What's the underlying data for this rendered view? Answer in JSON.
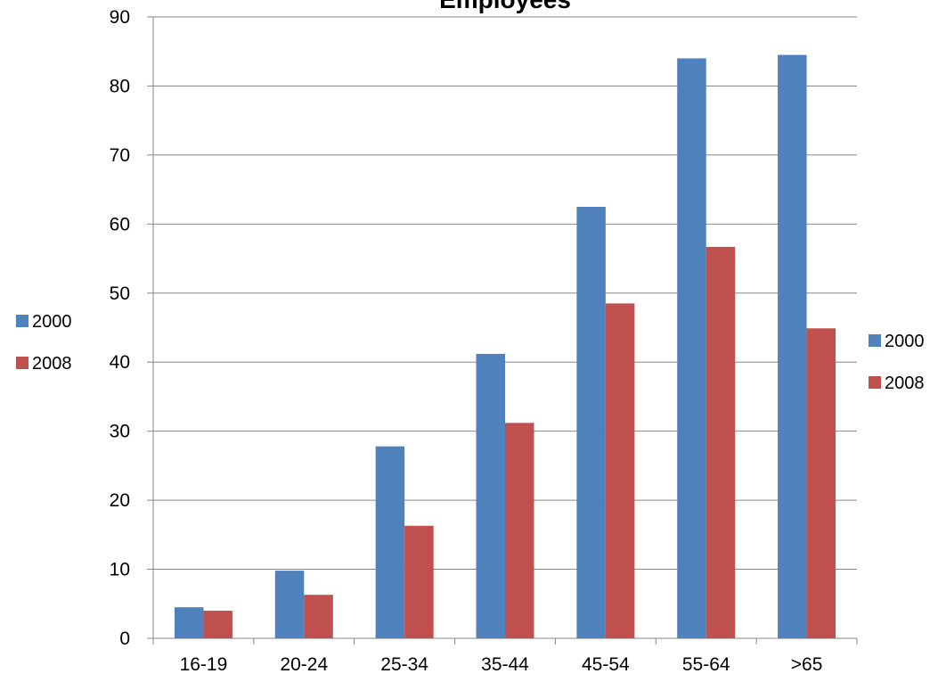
{
  "chart_data": {
    "type": "bar",
    "title": "Employees",
    "xlabel": "",
    "ylabel": "",
    "ylim": [
      0,
      90
    ],
    "yticks": [
      0,
      10,
      20,
      30,
      40,
      50,
      60,
      70,
      80,
      90
    ],
    "grid": true,
    "categories": [
      "16-19",
      "20-24",
      "25-34",
      "35-44",
      "45-54",
      "55-64",
      ">65"
    ],
    "series": [
      {
        "name": "2000",
        "color": "#4F81BD",
        "values": [
          4.5,
          9.8,
          27.8,
          41.2,
          62.5,
          84.0,
          84.5
        ]
      },
      {
        "name": "2008",
        "color": "#C0504D",
        "values": [
          4.0,
          6.3,
          16.3,
          31.2,
          48.5,
          56.7,
          44.9
        ]
      }
    ],
    "legends": [
      "left",
      "right"
    ]
  }
}
